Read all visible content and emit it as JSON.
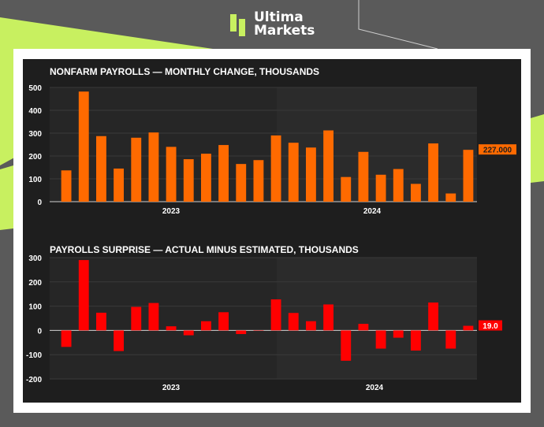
{
  "brand": {
    "name_line1": "Ultima",
    "name_line2": "Markets"
  },
  "colors": {
    "background": "#5a5a5a",
    "accent": "#c8f060",
    "panel": "#1e1e1e",
    "bars_top": "#ff6a00",
    "bars_bottom": "#ff0000"
  },
  "chart_data": [
    {
      "type": "bar",
      "title": "NONFARM PAYROLLS — MONTHLY CHANGE, THOUSANDS",
      "x_ticks": [
        "2023",
        "2024"
      ],
      "values": [
        137,
        482,
        287,
        145,
        280,
        303,
        240,
        186,
        210,
        248,
        165,
        182,
        290,
        258,
        237,
        312,
        108,
        218,
        118,
        143,
        78,
        255,
        36,
        227
      ],
      "ylim": [
        0,
        500
      ],
      "y_ticks": [
        0,
        100,
        200,
        300,
        400,
        500
      ],
      "last_value_label": "227.000",
      "color": "#ff6a00",
      "grid": true
    },
    {
      "type": "bar",
      "title": "PAYROLLS SURPRISE — ACTUAL MINUS ESTIMATED, THOUSANDS",
      "x_ticks": [
        "2023",
        "2024"
      ],
      "values": [
        -68,
        290,
        73,
        -85,
        97,
        113,
        17,
        -20,
        38,
        75,
        -15,
        0,
        128,
        72,
        38,
        107,
        -125,
        27,
        -75,
        -30,
        -83,
        115,
        -75,
        19
      ],
      "ylim": [
        -200,
        300
      ],
      "y_ticks": [
        -200,
        -100,
        0,
        100,
        200,
        300
      ],
      "last_value_label": "19.0",
      "color": "#ff0000",
      "grid": true
    }
  ]
}
